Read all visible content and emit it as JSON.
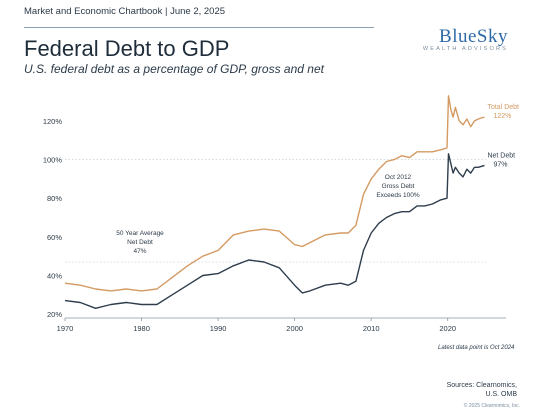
{
  "header": {
    "text": "Market and Economic Chartbook | June 2, 2025",
    "title": "Federal Debt to GDP",
    "subtitle": "U.S. federal debt as a percentage of GDP, gross and net"
  },
  "logo": {
    "main": "BlueSky",
    "sub": "WEALTH ADVISORS"
  },
  "footer": {
    "note": "Latest data point is Oct 2024",
    "sources_line1": "Sources: Clearnomics,",
    "sources_line2": "U.S. OMB",
    "copyright": "© 2025 Clearnomics, Inc."
  },
  "colors": {
    "total": "#d49a62",
    "net": "#2f3d4c",
    "grid": "#cfd6dc"
  },
  "chart_data": {
    "type": "line",
    "xlim": [
      1970,
      2025
    ],
    "ylim": [
      18,
      136
    ],
    "x_ticks": [
      1970,
      1980,
      1990,
      2000,
      2010,
      2020
    ],
    "x_tick_labels": [
      "1970",
      "1980",
      "1990",
      "2000",
      "2010",
      "2020"
    ],
    "y_ticks": [
      20,
      40,
      60,
      80,
      100,
      120
    ],
    "y_tick_labels": [
      "20%",
      "40%",
      "60%",
      "80%",
      "100%",
      "120%"
    ],
    "reference_lines": [
      {
        "y": 100,
        "style": "dotted"
      },
      {
        "y": 47,
        "style": "dotted"
      }
    ],
    "series": [
      {
        "name": "Total Debt",
        "end_label": "122%",
        "color": "#d49a62",
        "x": [
          1970,
          1972,
          1974,
          1976,
          1978,
          1980,
          1982,
          1984,
          1986,
          1988,
          1990,
          1992,
          1994,
          1996,
          1998,
          2000,
          2001,
          2002,
          2004,
          2006,
          2007,
          2008,
          2009,
          2010,
          2011,
          2012,
          2013,
          2014,
          2015,
          2016,
          2017,
          2018,
          2019,
          2019.9,
          2020.1,
          2020.4,
          2020.7,
          2021,
          2021.5,
          2022,
          2022.5,
          2023,
          2023.5,
          2024,
          2024.8
        ],
        "values": [
          36,
          35,
          33,
          32,
          33,
          32,
          33,
          39,
          45,
          50,
          53,
          61,
          63,
          64,
          63,
          56,
          55,
          57,
          61,
          62,
          62,
          66,
          82,
          90,
          95,
          99,
          100,
          102,
          101,
          104,
          104,
          104,
          105,
          106,
          133,
          126,
          122,
          127,
          120,
          118,
          121,
          117,
          120,
          121,
          122
        ]
      },
      {
        "name": "Net Debt",
        "end_label": "97%",
        "color": "#2f3d4c",
        "x": [
          1970,
          1972,
          1974,
          1976,
          1978,
          1980,
          1982,
          1984,
          1986,
          1988,
          1990,
          1992,
          1994,
          1996,
          1998,
          2000,
          2001,
          2002,
          2004,
          2006,
          2007,
          2008,
          2009,
          2010,
          2011,
          2012,
          2013,
          2014,
          2015,
          2016,
          2017,
          2018,
          2019,
          2019.9,
          2020.1,
          2020.4,
          2020.7,
          2021,
          2021.5,
          2022,
          2022.5,
          2023,
          2023.5,
          2024,
          2024.8
        ],
        "values": [
          27,
          26,
          23,
          25,
          26,
          25,
          25,
          30,
          35,
          40,
          41,
          45,
          48,
          47,
          44,
          35,
          31,
          32,
          35,
          36,
          35,
          37,
          53,
          62,
          67,
          70,
          72,
          73,
          73,
          76,
          76,
          77,
          79,
          80,
          103,
          98,
          93,
          96,
          93,
          91,
          95,
          93,
          96,
          96,
          97
        ]
      }
    ],
    "annotations": [
      {
        "lines": [
          "50 Year Average",
          "Net Debt",
          "47%"
        ]
      },
      {
        "lines": [
          "Oct 2012",
          "Gross Debt",
          "Exceeds 100%"
        ]
      }
    ]
  }
}
